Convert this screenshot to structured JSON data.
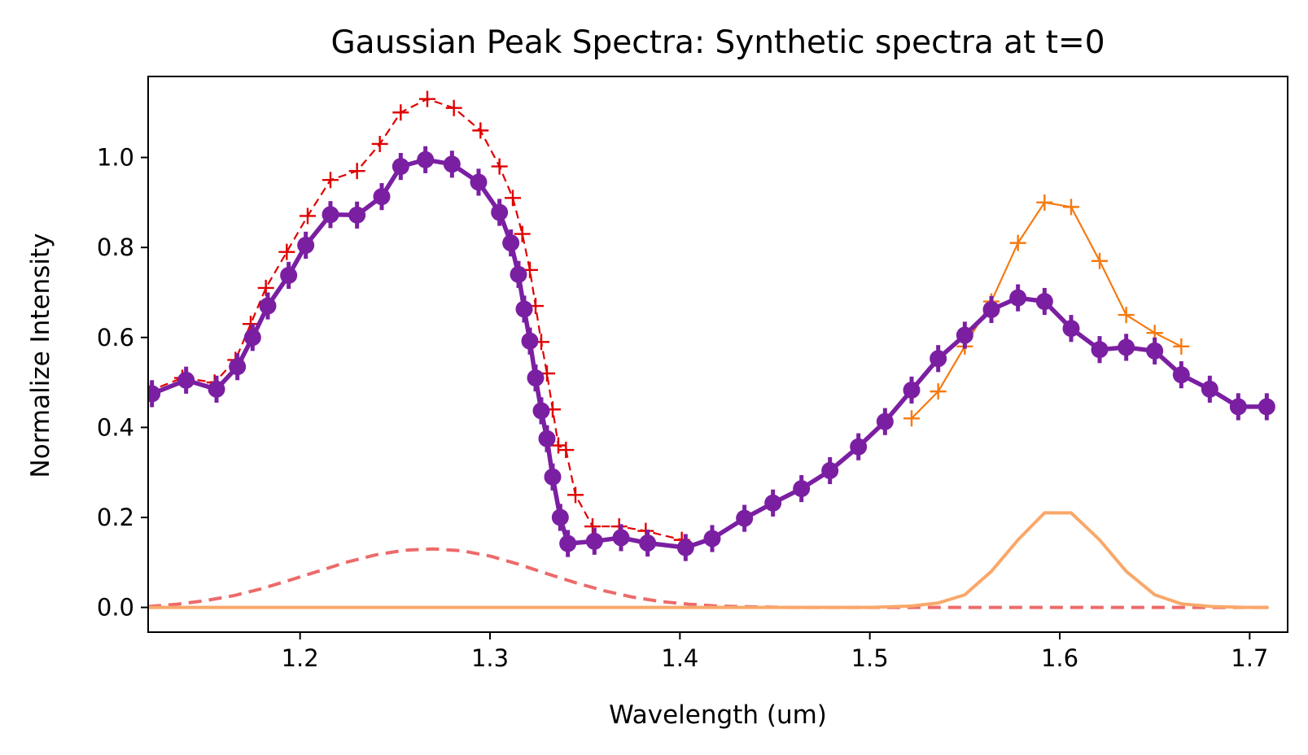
{
  "chart_data": {
    "type": "line",
    "title": "Gaussian Peak Spectra: Synthetic spectra at t=0",
    "xlabel": "Wavelength (um)",
    "ylabel": "Normalize Intensity",
    "xlim": [
      1.12,
      1.72
    ],
    "ylim": [
      -0.055,
      1.18
    ],
    "xticks": [
      1.2,
      1.3,
      1.4,
      1.5,
      1.6,
      1.7
    ],
    "xtick_labels": [
      "1.2",
      "1.3",
      "1.4",
      "1.5",
      "1.6",
      "1.7"
    ],
    "yticks": [
      0.0,
      0.2,
      0.4,
      0.6,
      0.8,
      1.0
    ],
    "ytick_labels": [
      "0.0",
      "0.2",
      "0.4",
      "0.6",
      "0.8",
      "1.0"
    ],
    "grid": false,
    "legend": "none",
    "series": [
      {
        "key": "red_plus",
        "style": "dashed-plus",
        "color": "#e00000",
        "x": [
          1.12,
          1.138,
          1.155,
          1.166,
          1.174,
          1.182,
          1.193,
          1.204,
          1.216,
          1.23,
          1.242,
          1.253,
          1.267,
          1.281,
          1.295,
          1.305,
          1.312,
          1.317,
          1.321,
          1.324,
          1.327,
          1.33,
          1.333,
          1.336,
          1.34,
          1.345,
          1.354,
          1.368,
          1.382,
          1.401
        ],
        "y": [
          0.48,
          0.51,
          0.5,
          0.55,
          0.63,
          0.71,
          0.79,
          0.87,
          0.95,
          0.97,
          1.03,
          1.1,
          1.13,
          1.11,
          1.06,
          0.98,
          0.91,
          0.83,
          0.75,
          0.67,
          0.59,
          0.52,
          0.44,
          0.36,
          0.35,
          0.25,
          0.18,
          0.18,
          0.17,
          0.15
        ]
      },
      {
        "key": "red_gauss",
        "style": "dashed",
        "color": "#ed6a6a",
        "x": [
          1.12,
          1.135,
          1.15,
          1.165,
          1.18,
          1.195,
          1.21,
          1.225,
          1.24,
          1.255,
          1.27,
          1.285,
          1.3,
          1.315,
          1.33,
          1.345,
          1.36,
          1.375,
          1.39,
          1.405,
          1.42,
          1.44,
          1.46,
          1.48,
          1.5,
          1.52,
          1.54,
          1.56,
          1.58,
          1.6,
          1.62,
          1.64,
          1.66,
          1.68,
          1.7,
          1.71
        ],
        "y": [
          0.002,
          0.007,
          0.015,
          0.026,
          0.042,
          0.061,
          0.081,
          0.101,
          0.117,
          0.127,
          0.13,
          0.126,
          0.114,
          0.096,
          0.075,
          0.055,
          0.037,
          0.023,
          0.013,
          0.007,
          0.003,
          0.001,
          0.0,
          0.0,
          0.0,
          0.0,
          0.0,
          0.0,
          0.0,
          0.0,
          0.0,
          0.0,
          0.0,
          0.0,
          0.0,
          0.0
        ]
      },
      {
        "key": "orange_plus",
        "style": "solid-plus",
        "color": "#f57a10",
        "x": [
          1.522,
          1.536,
          1.55,
          1.564,
          1.578,
          1.592,
          1.606,
          1.621,
          1.635,
          1.65,
          1.664
        ],
        "y": [
          0.42,
          0.48,
          0.58,
          0.68,
          0.81,
          0.9,
          0.89,
          0.77,
          0.65,
          0.61,
          0.58
        ]
      },
      {
        "key": "orange_gauss",
        "style": "solid",
        "color": "#f9a86a",
        "x": [
          1.12,
          1.3,
          1.45,
          1.5,
          1.522,
          1.536,
          1.55,
          1.564,
          1.578,
          1.592,
          1.606,
          1.621,
          1.635,
          1.65,
          1.664,
          1.68,
          1.7,
          1.71
        ],
        "y": [
          0.0,
          0.0,
          0.0,
          0.0,
          0.003,
          0.01,
          0.028,
          0.08,
          0.15,
          0.21,
          0.21,
          0.15,
          0.08,
          0.028,
          0.008,
          0.002,
          0.0,
          0.0
        ]
      },
      {
        "key": "purple",
        "style": "solid-dot-errorbar",
        "color": "#7b1fa2",
        "x": [
          1.122,
          1.14,
          1.156,
          1.167,
          1.175,
          1.183,
          1.194,
          1.203,
          1.216,
          1.23,
          1.243,
          1.253,
          1.266,
          1.28,
          1.294,
          1.305,
          1.311,
          1.315,
          1.318,
          1.321,
          1.324,
          1.327,
          1.33,
          1.333,
          1.337,
          1.341,
          1.355,
          1.369,
          1.383,
          1.403,
          1.417,
          1.434,
          1.449,
          1.464,
          1.479,
          1.494,
          1.508,
          1.522,
          1.536,
          1.55,
          1.564,
          1.578,
          1.592,
          1.606,
          1.621,
          1.635,
          1.65,
          1.664,
          1.679,
          1.694,
          1.709
        ],
        "y": [
          0.475,
          0.505,
          0.485,
          0.535,
          0.6,
          0.67,
          0.738,
          0.805,
          0.873,
          0.872,
          0.913,
          0.98,
          0.995,
          0.985,
          0.945,
          0.878,
          0.81,
          0.74,
          0.663,
          0.592,
          0.51,
          0.437,
          0.375,
          0.29,
          0.2,
          0.142,
          0.147,
          0.155,
          0.143,
          0.133,
          0.153,
          0.198,
          0.232,
          0.264,
          0.304,
          0.357,
          0.413,
          0.483,
          0.553,
          0.605,
          0.662,
          0.688,
          0.68,
          0.62,
          0.573,
          0.578,
          0.57,
          0.517,
          0.485,
          0.446,
          0.446
        ],
        "err": 0.03
      }
    ]
  }
}
